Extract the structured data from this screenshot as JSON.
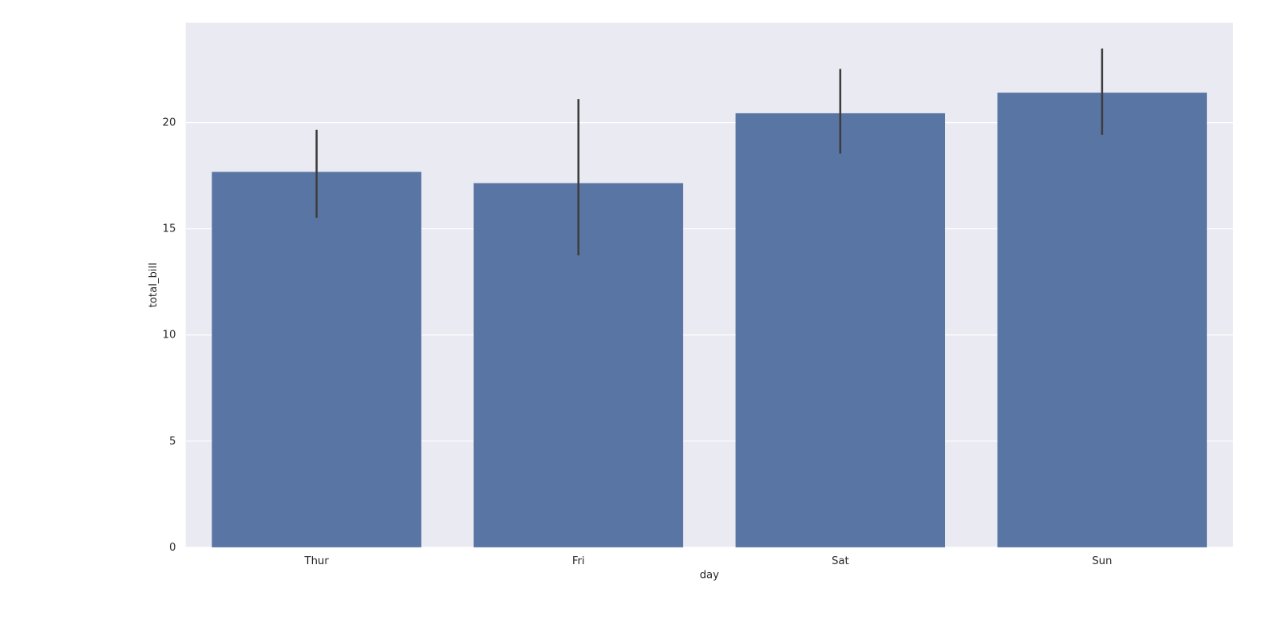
{
  "chart_data": {
    "type": "bar",
    "xlabel": "day",
    "ylabel": "total_bill",
    "categories": [
      "Thur",
      "Fri",
      "Sat",
      "Sun"
    ],
    "values": [
      17.68,
      17.15,
      20.44,
      21.41
    ],
    "ci_low": [
      15.52,
      13.75,
      18.54,
      19.43
    ],
    "ci_high": [
      19.66,
      21.11,
      22.53,
      23.49
    ],
    "color": "#5975a4",
    "error_color": "#3d3d3d",
    "background": "#eaeaf2",
    "ylim": [
      0,
      24.7
    ],
    "yticks": [
      0,
      5,
      10,
      15,
      20
    ],
    "grid": true
  }
}
